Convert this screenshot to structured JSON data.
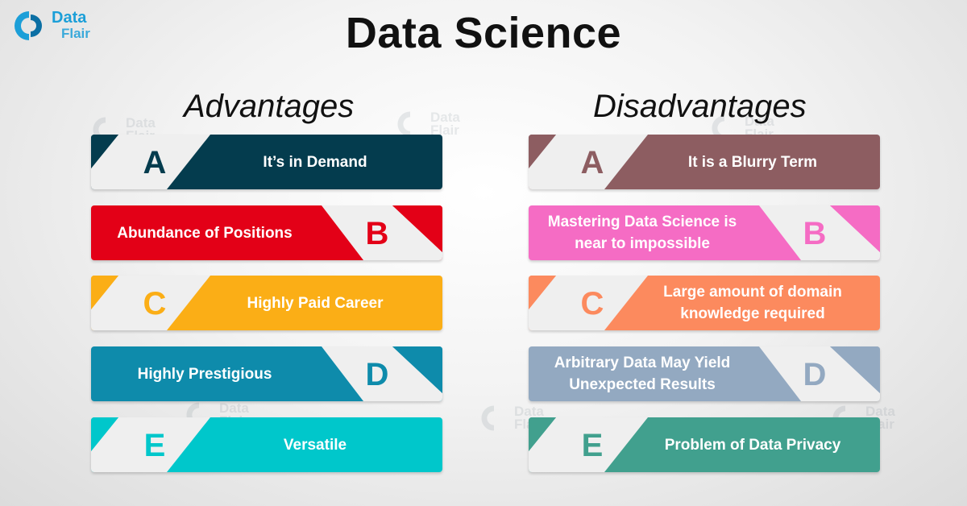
{
  "logo": {
    "line1": "Data",
    "line2": "Flair",
    "color": "#1c9fd8"
  },
  "watermark": {
    "line1": "Data",
    "line2": "Flair"
  },
  "title": "Data Science",
  "advantages": {
    "heading": "Advantages",
    "items": [
      {
        "letter": "A",
        "text": "It’s in Demand",
        "color": "#043c4e",
        "side": "left"
      },
      {
        "letter": "B",
        "text": "Abundance of Positions",
        "color": "#e30017",
        "side": "right"
      },
      {
        "letter": "C",
        "text": "Highly Paid Career",
        "color": "#fbae16",
        "side": "left"
      },
      {
        "letter": "D",
        "text": "Highly Prestigious",
        "color": "#0e8bab",
        "side": "right"
      },
      {
        "letter": "E",
        "text": "Versatile",
        "color": "#00c7cb",
        "side": "left"
      }
    ]
  },
  "disadvantages": {
    "heading": "Disadvantages",
    "items": [
      {
        "letter": "A",
        "text": "It is a Blurry Term",
        "color": "#8d5d61",
        "side": "left"
      },
      {
        "letter": "B",
        "text": "Mastering Data Science is near to impossible",
        "color": "#f56cc4",
        "side": "right"
      },
      {
        "letter": "C",
        "text": "Large amount of domain knowledge required",
        "color": "#fc8a5e",
        "side": "left"
      },
      {
        "letter": "D",
        "text": "Arbitrary Data May Yield Unexpected Results",
        "color": "#93a9c1",
        "side": "right"
      },
      {
        "letter": "E",
        "text": "Problem of Data Privacy",
        "color": "#41a08e",
        "side": "left"
      }
    ]
  }
}
